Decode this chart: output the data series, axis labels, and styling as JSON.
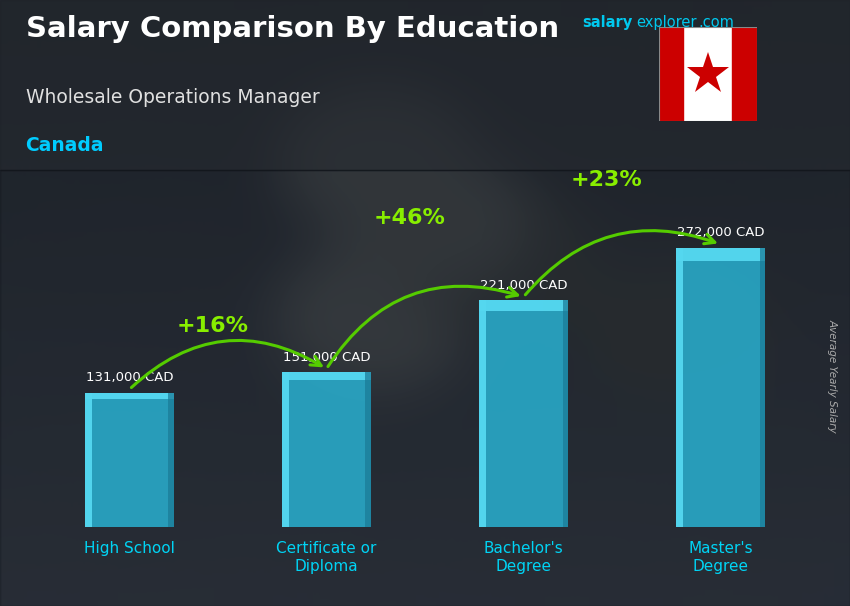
{
  "title_line1": "Salary Comparison By Education",
  "subtitle": "Wholesale Operations Manager",
  "country": "Canada",
  "ylabel": "Average Yearly Salary",
  "categories": [
    "High School",
    "Certificate or\nDiploma",
    "Bachelor's\nDegree",
    "Master's\nDegree"
  ],
  "values": [
    131000,
    151000,
    221000,
    272000
  ],
  "value_labels": [
    "131,000 CAD",
    "151,000 CAD",
    "221,000 CAD",
    "272,000 CAD"
  ],
  "pct_labels": [
    "+16%",
    "+46%",
    "+23%"
  ],
  "bar_color": "#29b6d8",
  "bar_alpha": 0.82,
  "bar_highlight": "#55d8f0",
  "bar_shadow": "#1a7a96",
  "bg_top_color": "#3a3f4a",
  "bg_bottom_color": "#2a2e38",
  "title_color": "#ffffff",
  "subtitle_color": "#e0e0e0",
  "country_color": "#00ccff",
  "value_label_color": "#ffffff",
  "pct_color": "#88ee00",
  "arrow_color": "#55cc00",
  "xlabel_color": "#00d4f5",
  "watermark_salary_color": "#00bbee",
  "watermark_explorer_color": "#00bbee",
  "watermark_com_color": "#00bbee",
  "axis_label_color": "#aaaaaa",
  "bar_width": 0.45,
  "ylim": [
    0,
    330000
  ]
}
